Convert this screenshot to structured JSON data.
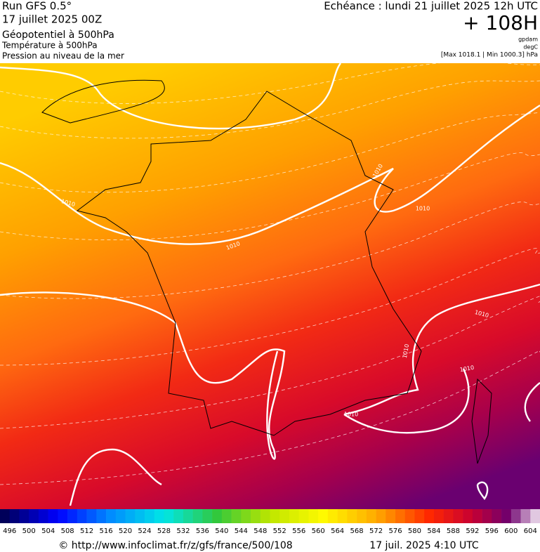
{
  "header": {
    "run": "Run GFS 0.5°",
    "date": "17 juillet 2025 00Z",
    "field1": "Géopotentiel à 500hPa",
    "field2": "Température à 500hPa",
    "field3": "Pression au niveau de la mer",
    "echeance": "Echéance : lundi 21 juillet 2025 12h UTC",
    "lead": "+ 108H",
    "unit1": "gpdam",
    "unit2": "degC",
    "range": "[Max 1018.1 | Min 1000.3] hPa"
  },
  "map": {
    "isobar_labels": [
      "1010",
      "1010",
      "1010",
      "1010",
      "1010",
      "1010",
      "1010",
      "1010"
    ]
  },
  "colorbar": {
    "labels": [
      496,
      500,
      504,
      508,
      512,
      516,
      520,
      524,
      528,
      532,
      536,
      540,
      544,
      548,
      552,
      556,
      560,
      564,
      568,
      572,
      576,
      580,
      584,
      588,
      592,
      596,
      600,
      604
    ]
  },
  "footer": {
    "url": "© http://www.infoclimat.fr/z/gfs/france/500/108",
    "time": "17 juil. 2025  4:10 UTC"
  }
}
